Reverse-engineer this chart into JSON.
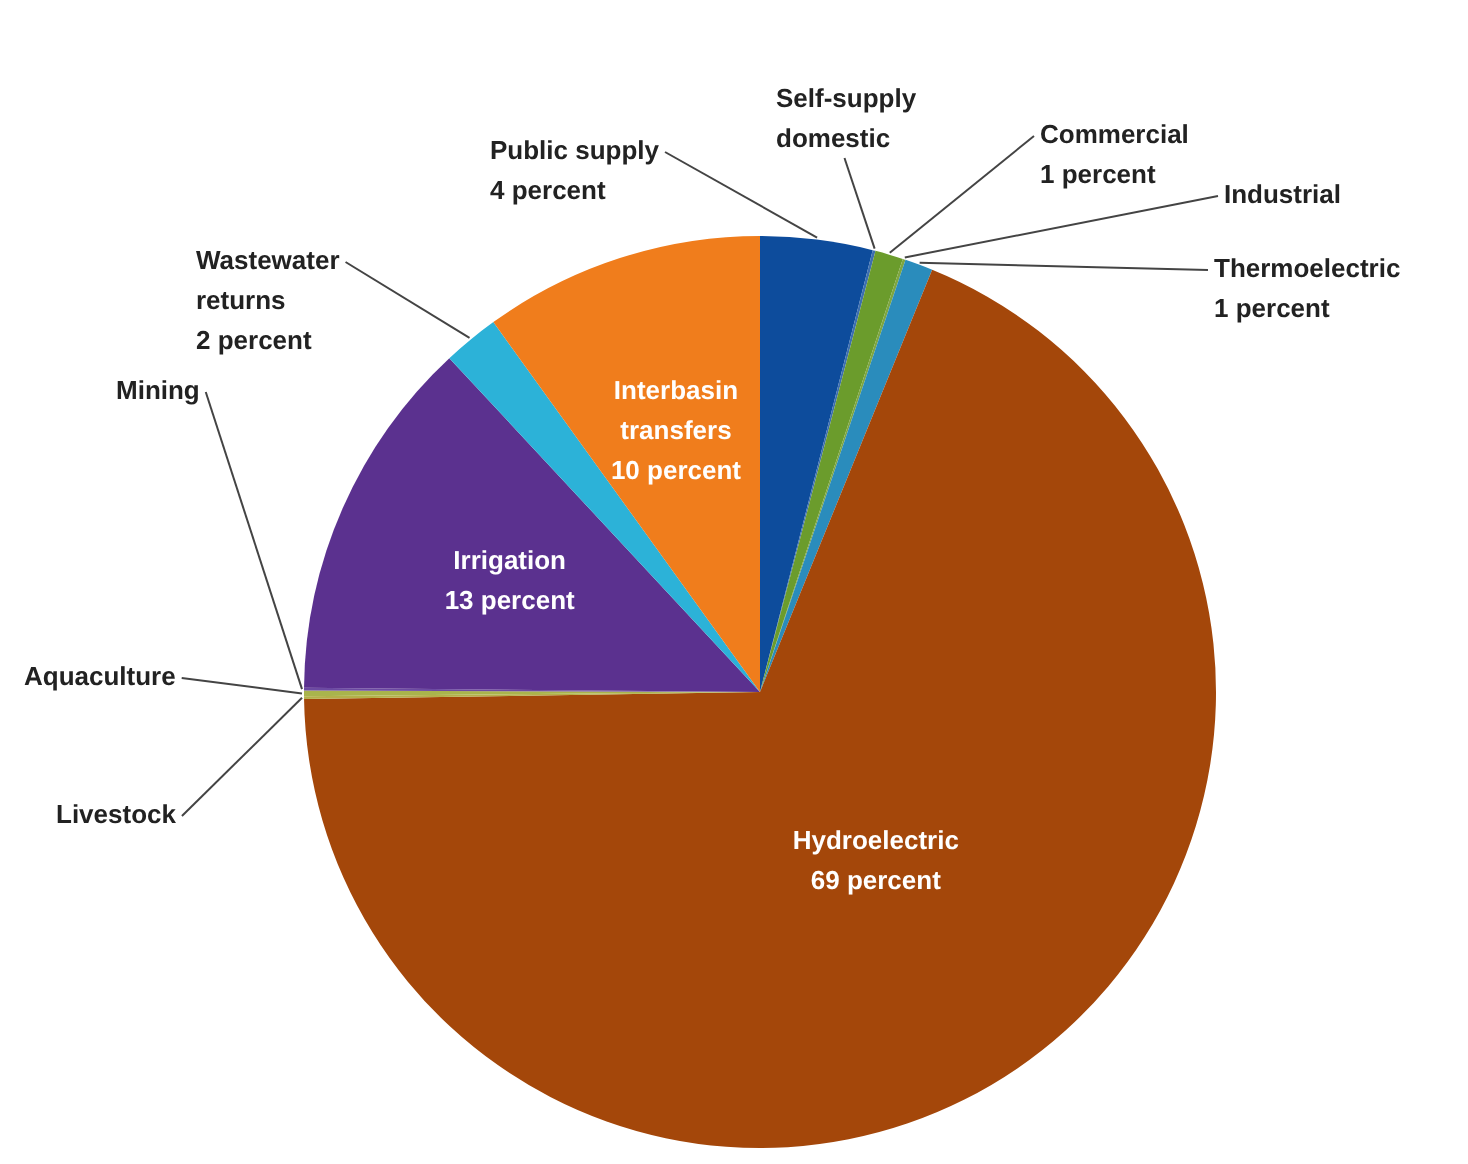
{
  "chart_data": {
    "type": "pie",
    "categories": [
      "Public supply",
      "Self-supply domestic",
      "Commercial",
      "Industrial",
      "Thermoelectric",
      "Hydroelectric",
      "Livestock",
      "Aquaculture",
      "Mining",
      "Irrigation",
      "Wastewater returns",
      "Interbasin transfers"
    ],
    "values": [
      4,
      0.1,
      1,
      0.1,
      1,
      69,
      0.1,
      0.2,
      0.1,
      13,
      2,
      10
    ],
    "value_labels": [
      "4 percent",
      null,
      "1 percent",
      null,
      "1 percent",
      "69 percent",
      null,
      null,
      null,
      "13 percent",
      "2 percent",
      "10 percent"
    ],
    "colors": [
      "#0d4c9c",
      "#3d6fb0",
      "#6b9c2c",
      "#7fa640",
      "#2a8cbc",
      "#a4470a",
      "#b4b04a",
      "#a9b44c",
      "#6c4aa2",
      "#5b318f",
      "#2cb2d8",
      "#f07d1c"
    ],
    "legend": false
  }
}
